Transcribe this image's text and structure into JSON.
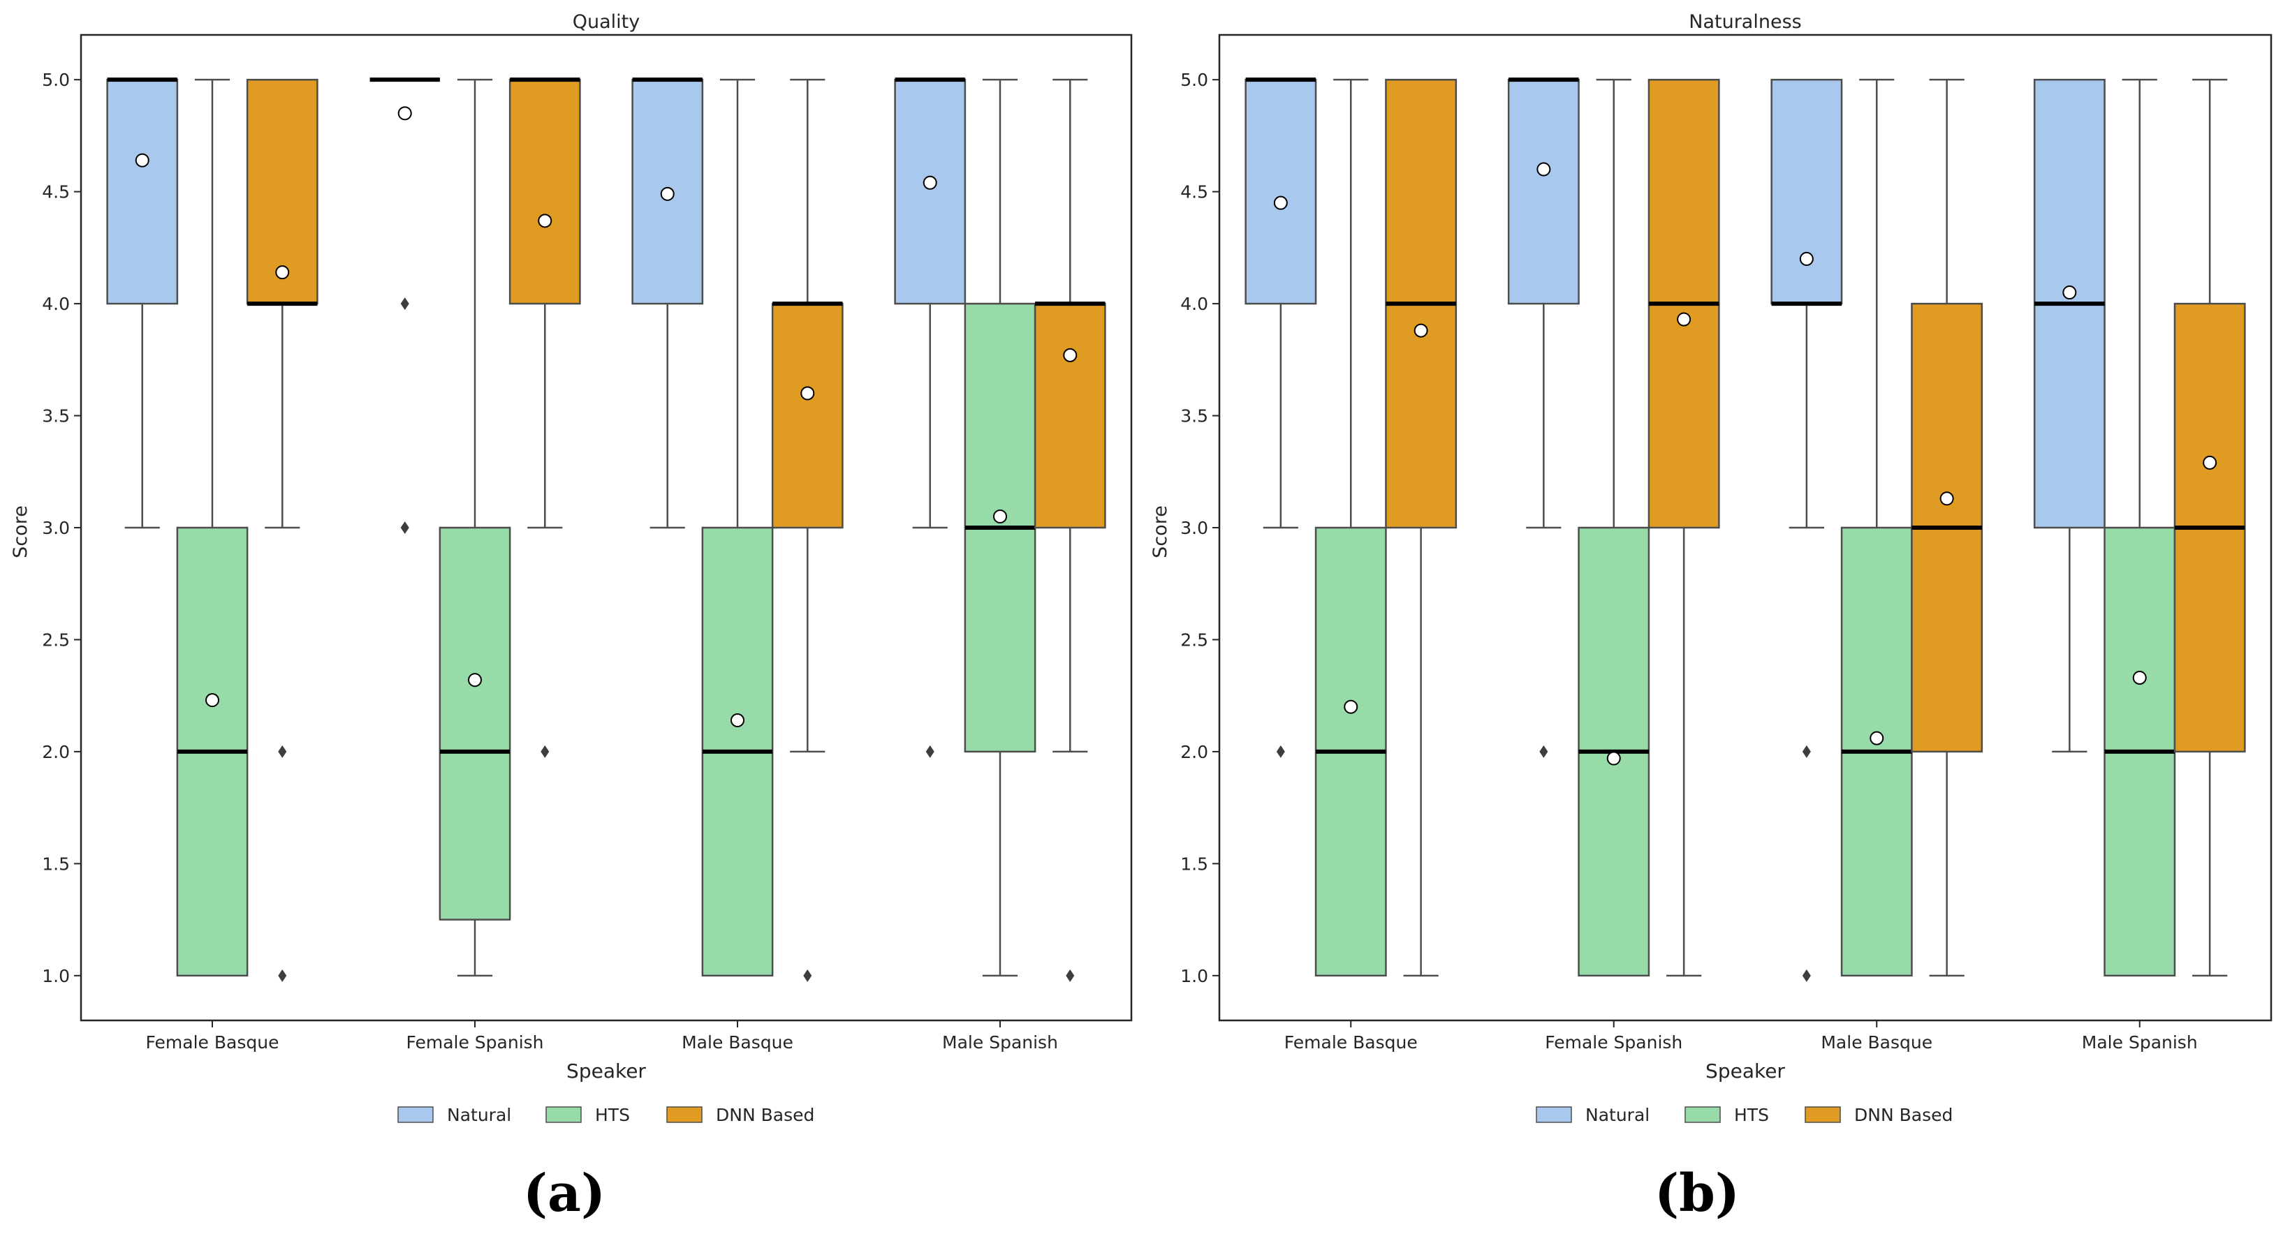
{
  "chart_data": [
    {
      "type": "boxplot",
      "title": "Quality",
      "panel_label": "(a)",
      "xlabel": "Speaker",
      "ylabel": "Score",
      "ylim": [
        0.8,
        5.2
      ],
      "yticks": [
        "1.0",
        "1.5",
        "2.0",
        "2.5",
        "3.0",
        "3.5",
        "4.0",
        "4.5",
        "5.0"
      ],
      "categories": [
        "Female Basque",
        "Female Spanish",
        "Male Basque",
        "Male Spanish"
      ],
      "legend": [
        "Natural",
        "HTS",
        "DNN Based"
      ],
      "series": [
        {
          "name": "Natural",
          "color": "#a9c8ed",
          "boxes": [
            {
              "q1": 4.0,
              "median": 5.0,
              "q3": 5.0,
              "whislo": 3.0,
              "whishi": 5.0,
              "mean": 4.64,
              "fliers": []
            },
            {
              "q1": 5.0,
              "median": 5.0,
              "q3": 5.0,
              "whislo": 5.0,
              "whishi": 5.0,
              "mean": 4.85,
              "fliers": [
                4.0,
                3.0
              ]
            },
            {
              "q1": 4.0,
              "median": 5.0,
              "q3": 5.0,
              "whislo": 3.0,
              "whishi": 5.0,
              "mean": 4.49,
              "fliers": []
            },
            {
              "q1": 4.0,
              "median": 5.0,
              "q3": 5.0,
              "whislo": 3.0,
              "whishi": 5.0,
              "mean": 4.54,
              "fliers": [
                2.0
              ]
            }
          ]
        },
        {
          "name": "HTS",
          "color": "#97dba8",
          "boxes": [
            {
              "q1": 1.0,
              "median": 2.0,
              "q3": 3.0,
              "whislo": 1.0,
              "whishi": 5.0,
              "mean": 2.23,
              "fliers": []
            },
            {
              "q1": 1.25,
              "median": 2.0,
              "q3": 3.0,
              "whislo": 1.0,
              "whishi": 5.0,
              "mean": 2.32,
              "fliers": []
            },
            {
              "q1": 1.0,
              "median": 2.0,
              "q3": 3.0,
              "whislo": 1.0,
              "whishi": 5.0,
              "mean": 2.14,
              "fliers": []
            },
            {
              "q1": 2.0,
              "median": 3.0,
              "q3": 4.0,
              "whislo": 1.0,
              "whishi": 5.0,
              "mean": 3.05,
              "fliers": []
            }
          ]
        },
        {
          "name": "DNN Based",
          "color": "#e09c22",
          "boxes": [
            {
              "q1": 4.0,
              "median": 4.0,
              "q3": 5.0,
              "whislo": 3.0,
              "whishi": 5.0,
              "mean": 4.14,
              "fliers": [
                2.0,
                1.0
              ]
            },
            {
              "q1": 4.0,
              "median": 5.0,
              "q3": 5.0,
              "whislo": 3.0,
              "whishi": 5.0,
              "mean": 4.37,
              "fliers": [
                2.0
              ]
            },
            {
              "q1": 3.0,
              "median": 4.0,
              "q3": 4.0,
              "whislo": 2.0,
              "whishi": 5.0,
              "mean": 3.6,
              "fliers": [
                1.0
              ]
            },
            {
              "q1": 3.0,
              "median": 4.0,
              "q3": 4.0,
              "whislo": 2.0,
              "whishi": 5.0,
              "mean": 3.77,
              "fliers": [
                1.0
              ]
            }
          ]
        }
      ]
    },
    {
      "type": "boxplot",
      "title": "Naturalness",
      "panel_label": "(b)",
      "xlabel": "Speaker",
      "ylabel": "Score",
      "ylim": [
        0.8,
        5.2
      ],
      "yticks": [
        "1.0",
        "1.5",
        "2.0",
        "2.5",
        "3.0",
        "3.5",
        "4.0",
        "4.5",
        "5.0"
      ],
      "categories": [
        "Female Basque",
        "Female Spanish",
        "Male Basque",
        "Male Spanish"
      ],
      "legend": [
        "Natural",
        "HTS",
        "DNN Based"
      ],
      "series": [
        {
          "name": "Natural",
          "color": "#a9c8ed",
          "boxes": [
            {
              "q1": 4.0,
              "median": 5.0,
              "q3": 5.0,
              "whislo": 3.0,
              "whishi": 5.0,
              "mean": 4.45,
              "fliers": [
                2.0
              ]
            },
            {
              "q1": 4.0,
              "median": 5.0,
              "q3": 5.0,
              "whislo": 3.0,
              "whishi": 5.0,
              "mean": 4.6,
              "fliers": [
                2.0
              ]
            },
            {
              "q1": 4.0,
              "median": 4.0,
              "q3": 5.0,
              "whislo": 3.0,
              "whishi": 5.0,
              "mean": 4.2,
              "fliers": [
                2.0,
                1.0
              ]
            },
            {
              "q1": 3.0,
              "median": 4.0,
              "q3": 5.0,
              "whislo": 2.0,
              "whishi": 5.0,
              "mean": 4.05,
              "fliers": []
            }
          ]
        },
        {
          "name": "HTS",
          "color": "#97dba8",
          "boxes": [
            {
              "q1": 1.0,
              "median": 2.0,
              "q3": 3.0,
              "whislo": 1.0,
              "whishi": 5.0,
              "mean": 2.2,
              "fliers": []
            },
            {
              "q1": 1.0,
              "median": 2.0,
              "q3": 3.0,
              "whislo": 1.0,
              "whishi": 5.0,
              "mean": 1.97,
              "fliers": []
            },
            {
              "q1": 1.0,
              "median": 2.0,
              "q3": 3.0,
              "whislo": 1.0,
              "whishi": 5.0,
              "mean": 2.06,
              "fliers": []
            },
            {
              "q1": 1.0,
              "median": 2.0,
              "q3": 3.0,
              "whislo": 1.0,
              "whishi": 5.0,
              "mean": 2.33,
              "fliers": []
            }
          ]
        },
        {
          "name": "DNN Based",
          "color": "#e09c22",
          "boxes": [
            {
              "q1": 3.0,
              "median": 4.0,
              "q3": 5.0,
              "whislo": 1.0,
              "whishi": 5.0,
              "mean": 3.88,
              "fliers": []
            },
            {
              "q1": 3.0,
              "median": 4.0,
              "q3": 5.0,
              "whislo": 1.0,
              "whishi": 5.0,
              "mean": 3.93,
              "fliers": []
            },
            {
              "q1": 2.0,
              "median": 3.0,
              "q3": 4.0,
              "whislo": 1.0,
              "whishi": 5.0,
              "mean": 3.13,
              "fliers": []
            },
            {
              "q1": 2.0,
              "median": 3.0,
              "q3": 4.0,
              "whislo": 1.0,
              "whishi": 5.0,
              "mean": 3.29,
              "fliers": []
            }
          ]
        }
      ]
    }
  ]
}
